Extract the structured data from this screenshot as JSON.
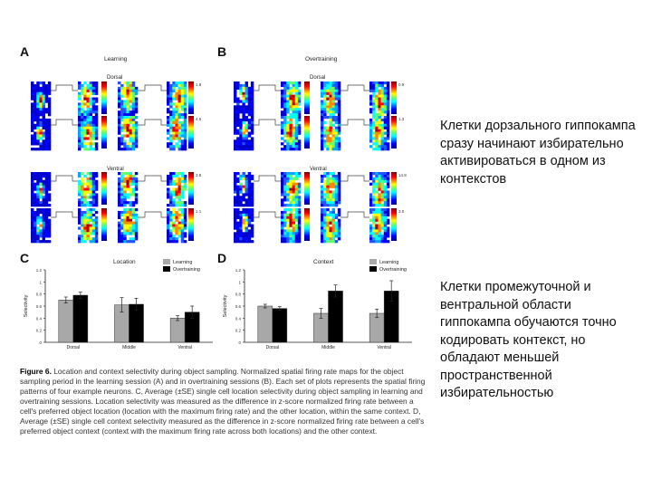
{
  "panels": {
    "A": {
      "letter": "A",
      "title": "Learning",
      "dorsal": "Dorsal",
      "ventral": "Ventral",
      "scales": [
        "1.8",
        "4.5",
        "3.8",
        "1.1"
      ]
    },
    "B": {
      "letter": "B",
      "title": "Overtraining",
      "dorsal": "Dorsal",
      "ventral": "Ventral",
      "scales": [
        "0.9",
        "1.3",
        "14.8",
        "3.0"
      ]
    },
    "C": {
      "letter": "C",
      "title": "Location"
    },
    "D": {
      "letter": "D",
      "title": "Context"
    }
  },
  "legend": {
    "learning": "Learning",
    "overtraining": "Overtraining"
  },
  "colors": {
    "learning": "#a8a8a8",
    "overtraining": "#000000"
  },
  "chart_data": [
    {
      "type": "bar",
      "panel": "C",
      "title": "Location",
      "ylabel": "Selectivity",
      "ylim": [
        0,
        1.2
      ],
      "yticks": [
        "0",
        "0.2",
        "0.4",
        "0.6",
        "0.8",
        "1",
        "1.2"
      ],
      "categories": [
        "Dorsal",
        "Middle",
        "Ventral"
      ],
      "series": [
        {
          "name": "Learning",
          "values": [
            0.7,
            0.62,
            0.4
          ],
          "errors": [
            0.05,
            0.12,
            0.04
          ]
        },
        {
          "name": "Overtraining",
          "values": [
            0.78,
            0.63,
            0.5
          ],
          "errors": [
            0.05,
            0.1,
            0.1
          ]
        }
      ]
    },
    {
      "type": "bar",
      "panel": "D",
      "title": "Context",
      "ylabel": "Selectivity",
      "ylim": [
        0,
        1.2
      ],
      "yticks": [
        "0",
        "0.2",
        "0.4",
        "0.6",
        "0.8",
        "1",
        "1.2"
      ],
      "categories": [
        "Dorsal",
        "Middle",
        "Ventral"
      ],
      "series": [
        {
          "name": "Learning",
          "values": [
            0.6,
            0.48,
            0.48
          ],
          "errors": [
            0.03,
            0.08,
            0.07
          ]
        },
        {
          "name": "Overtraining",
          "values": [
            0.56,
            0.85,
            0.85
          ],
          "errors": [
            0.03,
            0.1,
            0.17
          ]
        }
      ]
    }
  ],
  "caption": {
    "label": "Figure 6.",
    "text": "Location and context selectivity during object sampling. Normalized spatial firing rate maps for the object sampling period in the learning session (A) and in overtraining sessions (B). Each set of plots represents the spatial firing patterns of four example neurons. C, Average (±SE) single cell location selectivity during object sampling in learning and overtraining sessions. Location selectivity was measured as the difference in z-score normalized firing rate between a cell's preferred object location (location with the maximum firing rate) and the other location, within the same context. D, Average (±SE) single cell context selectivity measured as the difference in z-score normalized firing rate between a cell's preferred object context (context with the maximum firing rate across both locations) and the other context."
  },
  "slide_text": {
    "point1": "Клетки дорзального гиппокампа сразу начинают избирательно активироваться в одном из контекстов",
    "point2": "Клетки промежуточной и вентральной области гиппокампа обучаются точно кодировать контекст, но обладают меньшей пространственной избирательностью"
  }
}
